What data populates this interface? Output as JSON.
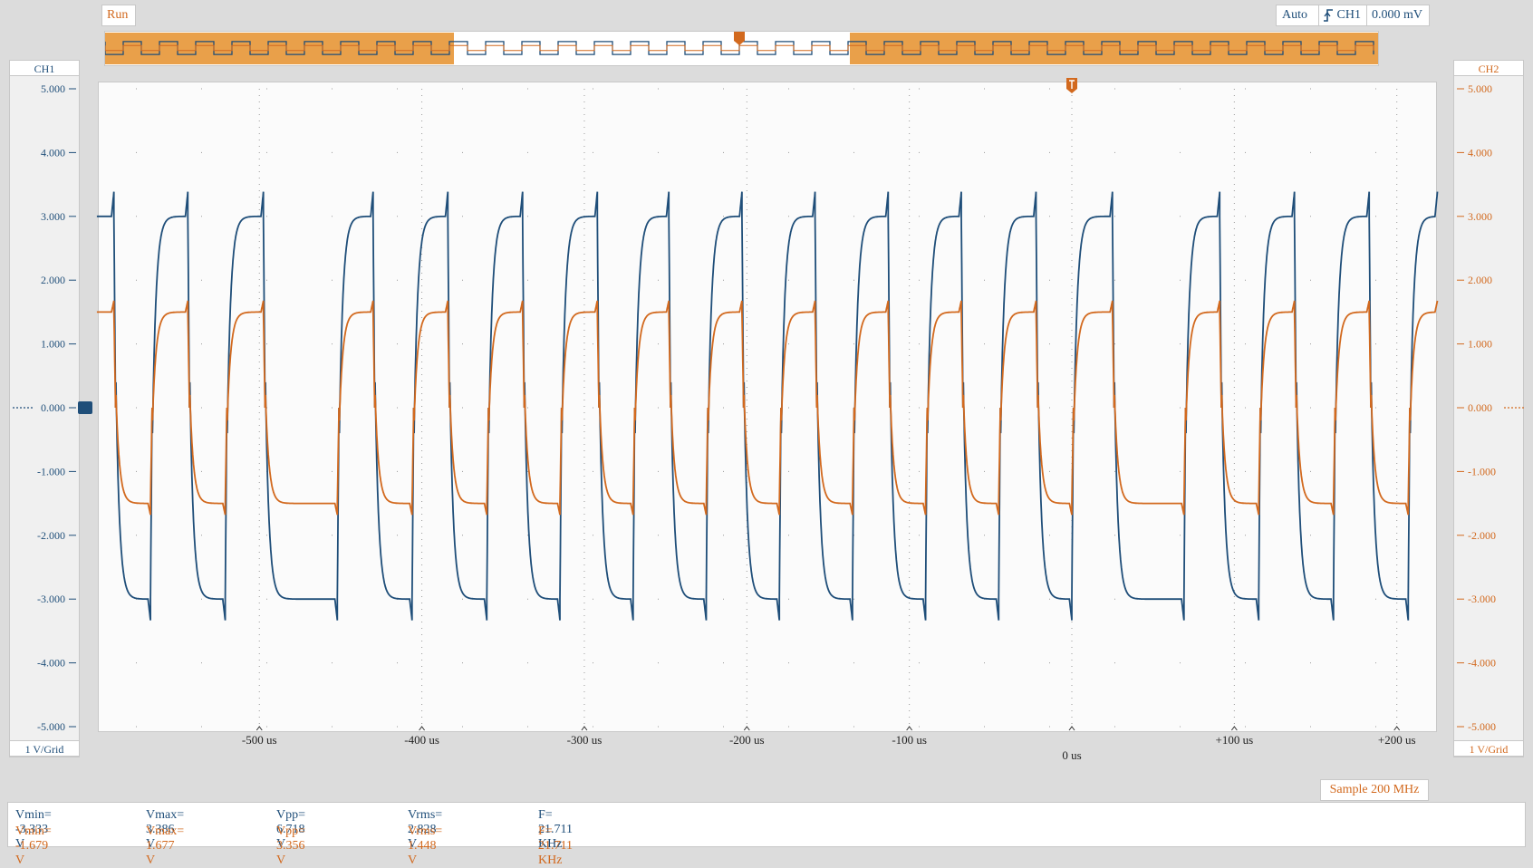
{
  "status": {
    "run_label": "Run",
    "sample_label": "Sample 200 MHz"
  },
  "trigger": {
    "mode": "Auto",
    "source": "CH1",
    "level": "0.000 mV"
  },
  "channels": {
    "ch1": {
      "label": "CH1",
      "scale": "1 V/Grid",
      "color": "#1f4e79"
    },
    "ch2": {
      "label": "CH2",
      "scale": "1 V/Grid",
      "color": "#d2691e"
    }
  },
  "measurements": {
    "ch1": {
      "vmin": "Vmin= -3.333 V",
      "vmax": "Vmax= 3.386 V",
      "vpp": "Vpp= 6.718 V",
      "vrms": "Vrms= 2.828 V",
      "freq": "F= 21.711 KHz"
    },
    "ch2": {
      "vmin": "Vmin= -1.679 V",
      "vmax": "Vmax= 1.677 V",
      "vpp": "Vpp= 3.356 V",
      "vrms": "Vrms= 1.448 V",
      "freq": "F= 21.711 KHz"
    }
  },
  "chart_data": {
    "type": "line",
    "x_unit": "us",
    "y_unit": "V",
    "ylim": [
      -5,
      5
    ],
    "xlim": [
      -600,
      225
    ],
    "yticks": [
      "5.000",
      "4.000",
      "3.000",
      "2.000",
      "1.000",
      "0.000",
      "-1.000",
      "-2.000",
      "-3.000",
      "-4.000",
      "-5.000"
    ],
    "xticks": [
      {
        "value": -500,
        "label": "-500 us"
      },
      {
        "value": -400,
        "label": "-400 us"
      },
      {
        "value": -300,
        "label": "-300 us"
      },
      {
        "value": -200,
        "label": "-200 us"
      },
      {
        "value": -100,
        "label": "-100 us"
      },
      {
        "value": 0,
        "label": "0 us"
      },
      {
        "value": 100,
        "label": "+100 us"
      },
      {
        "value": 200,
        "label": "+200 us"
      }
    ],
    "transitions_us": [
      -589.5,
      -567,
      -544,
      -521,
      -497.5,
      -452,
      -430,
      -406,
      -384,
      -360,
      -338,
      -315,
      -292,
      -270,
      -248,
      -225,
      -203,
      -180,
      -158,
      -135,
      -113,
      -90,
      -68,
      -45,
      -22,
      0,
      25,
      69,
      91,
      115,
      137,
      161,
      183,
      207
    ],
    "start_level": "high",
    "series": [
      {
        "name": "CH1",
        "high": 3.0,
        "low": -3.0,
        "peak": 3.386,
        "trough": -3.333,
        "color": "#1f4e79"
      },
      {
        "name": "CH2",
        "high": 1.5,
        "low": -1.5,
        "peak": 1.677,
        "trough": -1.679,
        "color": "#d2691e"
      }
    ]
  }
}
